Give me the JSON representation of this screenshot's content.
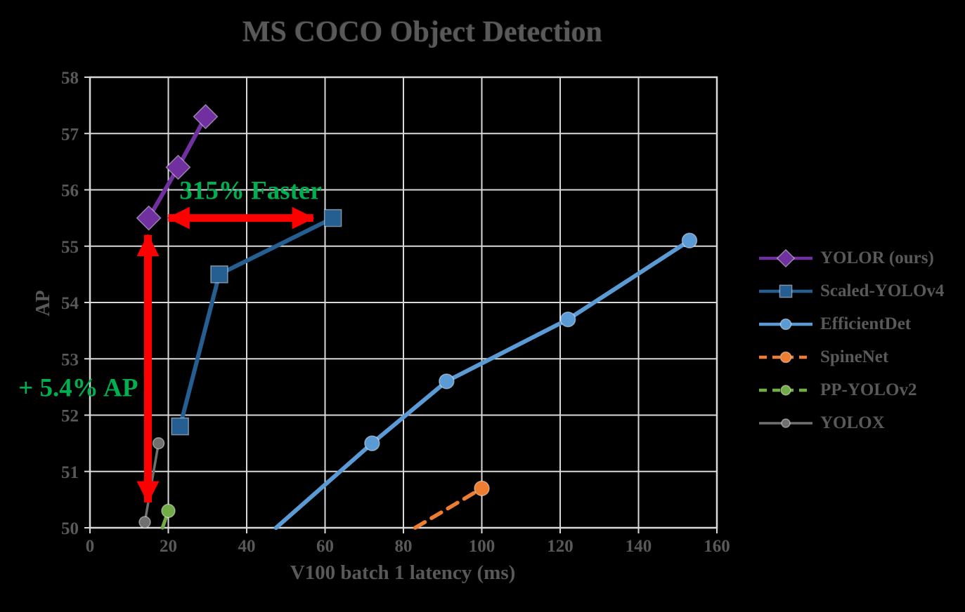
{
  "chart_data": {
    "type": "line",
    "title": "MS COCO Object Detection",
    "xlabel": "V100 batch 1 latency (ms)",
    "ylabel": "AP",
    "xlim": [
      0,
      160
    ],
    "ylim": [
      50,
      58
    ],
    "xticks": [
      0,
      20,
      40,
      60,
      80,
      100,
      120,
      140,
      160
    ],
    "yticks": [
      50,
      51,
      52,
      53,
      54,
      55,
      56,
      57,
      58
    ],
    "grid": true,
    "grid_color": "#D9D9D9",
    "text_color": "#595959",
    "background_color": "#000000",
    "legend_position": "right",
    "series": [
      {
        "name": "YOLOR (ours)",
        "color": "#7030A0",
        "marker": "diamond",
        "marker_size": 34,
        "line_width": 6,
        "dashed": false,
        "points": [
          {
            "x": 15,
            "y": 55.5
          },
          {
            "x": 22.5,
            "y": 56.4
          },
          {
            "x": 29.5,
            "y": 57.3
          }
        ]
      },
      {
        "name": "Scaled-YOLOv4",
        "color": "#255E91",
        "marker": "square",
        "marker_size": 24,
        "line_width": 6,
        "dashed": false,
        "points": [
          {
            "x": 23,
            "y": 51.8
          },
          {
            "x": 33,
            "y": 54.5
          },
          {
            "x": 62,
            "y": 55.5
          }
        ]
      },
      {
        "name": "EfficientDet",
        "color": "#5B9BD5",
        "marker": "circle",
        "marker_size": 21,
        "line_width": 6,
        "dashed": false,
        "points": [
          {
            "x": 47.5,
            "y": 50.0,
            "edge": true
          },
          {
            "x": 72,
            "y": 51.5
          },
          {
            "x": 91,
            "y": 52.6
          },
          {
            "x": 122,
            "y": 53.7
          },
          {
            "x": 153,
            "y": 55.1
          }
        ]
      },
      {
        "name": "SpineNet",
        "color": "#ED7D31",
        "marker": "circle",
        "marker_size": 21,
        "line_width": 5.5,
        "dashed": true,
        "points": [
          {
            "x": 83,
            "y": 50.0,
            "edge": true
          },
          {
            "x": 100,
            "y": 50.7
          }
        ]
      },
      {
        "name": "PP-YOLOv2",
        "color": "#70AD47",
        "marker": "circle",
        "marker_size": 19,
        "line_width": 5,
        "dashed": true,
        "points": [
          {
            "x": 18.5,
            "y": 50.0,
            "edge": true
          },
          {
            "x": 20,
            "y": 50.3
          }
        ]
      },
      {
        "name": "YOLOX",
        "color": "#707070",
        "marker": "circle",
        "marker_size": 16,
        "line_width": 3.5,
        "dashed": false,
        "points": [
          {
            "x": 14,
            "y": 50.1
          },
          {
            "x": 17.5,
            "y": 51.5
          }
        ]
      }
    ],
    "arrows": [
      {
        "type": "horizontal",
        "color": "#FF0000",
        "x1": 20,
        "x2": 57,
        "y": 55.5
      },
      {
        "type": "vertical",
        "color": "#FF0000",
        "x": 14.8,
        "y1": 55.2,
        "y2": 50.45
      }
    ],
    "annotations": [
      {
        "text": "315% Faster",
        "color": "#00B050",
        "x": 41,
        "y": 56.0
      },
      {
        "text": "+ 5.4% AP",
        "color": "#00B050",
        "x": -3,
        "y": 52.5
      }
    ]
  }
}
